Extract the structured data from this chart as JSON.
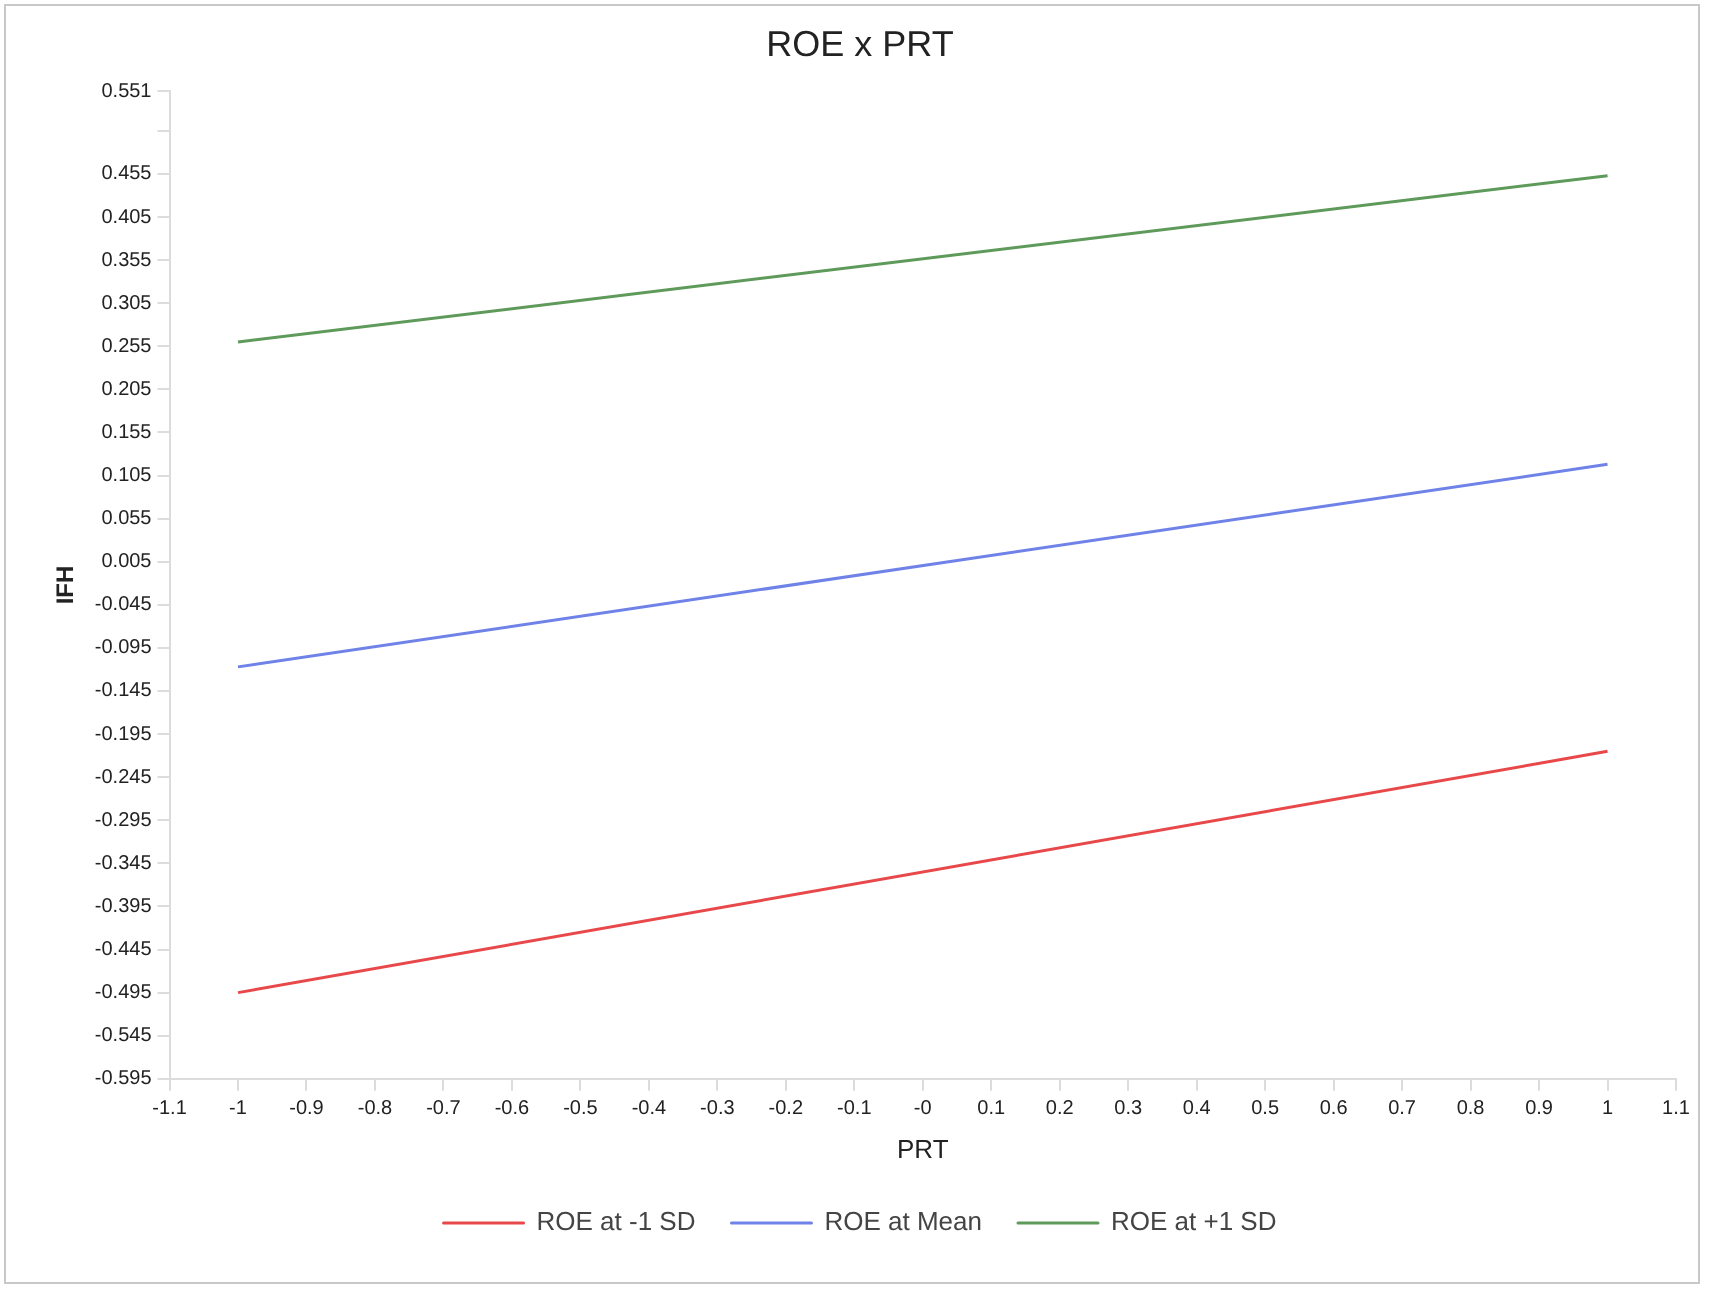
{
  "chart_data": {
    "type": "line",
    "title": "ROE x PRT",
    "xlabel": "PRT",
    "ylabel": "IFH",
    "x": [
      -1,
      1
    ],
    "series": [
      {
        "name": "ROE at -1 SD",
        "color": "#e8484a",
        "values": [
          -0.495,
          -0.215
        ]
      },
      {
        "name": "ROE at Mean",
        "color": "#6f82e8",
        "values": [
          -0.117,
          0.118
        ]
      },
      {
        "name": "ROE at +1 SD",
        "color": "#5e9a5a",
        "values": [
          0.26,
          0.453
        ]
      }
    ],
    "xlim": [
      -1.1,
      1.1
    ],
    "xticks": [
      -1.1,
      -1,
      -0.9,
      -0.8,
      -0.7,
      -0.6,
      -0.5,
      -0.4,
      -0.3,
      -0.2,
      -0.1,
      {
        "value": 0,
        "label": "-0"
      },
      0.1,
      0.2,
      0.3,
      0.4,
      0.5,
      0.6,
      0.7,
      0.8,
      0.9,
      1,
      1.1
    ],
    "ylim": [
      -0.595,
      0.551
    ],
    "yticks": [
      -0.595,
      -0.545,
      -0.495,
      -0.445,
      -0.395,
      -0.345,
      -0.295,
      -0.245,
      -0.195,
      -0.145,
      -0.095,
      -0.045,
      0.005,
      0.055,
      0.105,
      0.155,
      0.205,
      0.255,
      0.305,
      0.355,
      0.405,
      0.455,
      {
        "value": 0.505,
        "label": null
      },
      0.551
    ],
    "grid": false,
    "legend": "bottom",
    "marker": "none",
    "line_style": "solid"
  }
}
